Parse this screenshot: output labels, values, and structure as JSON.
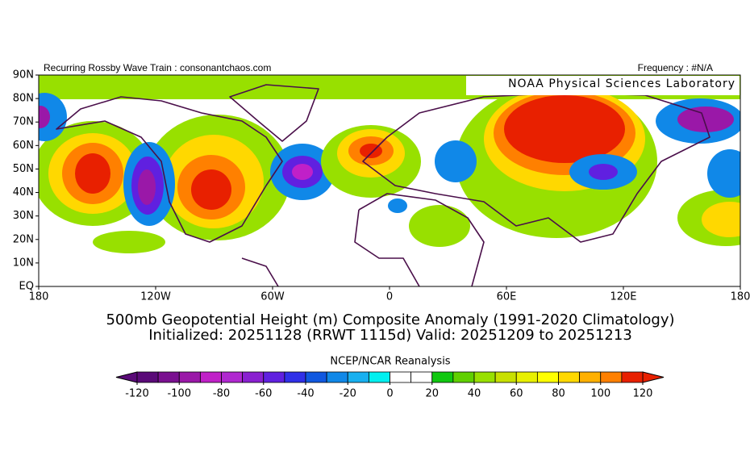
{
  "header": {
    "left": "Recurring Rossby Wave Train : consonantchaos.com",
    "right": "Frequency : #N/A",
    "lab": "NOAA Physical Sciences Laboratory"
  },
  "map": {
    "lat_labels": [
      "90N",
      "80N",
      "70N",
      "60N",
      "50N",
      "40N",
      "30N",
      "20N",
      "10N",
      "EQ"
    ],
    "lon_labels": [
      "180",
      "120W",
      "60W",
      "0",
      "60E",
      "120E",
      "180"
    ]
  },
  "title": {
    "line1": "500mb Geopotential Height (m) Composite Anomaly (1991-2020 Climatology)",
    "line2": "Initialized: 20251128 (RRWT 1115d) Valid: 20251209 to 20251213"
  },
  "colorbar": {
    "title": "NCEP/NCAR Reanalysis",
    "ticks": [
      -120,
      -100,
      -80,
      -60,
      -40,
      -20,
      0,
      20,
      40,
      60,
      80,
      100,
      120
    ],
    "colors": [
      "#5a0a78",
      "#7a1090",
      "#9a18a8",
      "#c020c8",
      "#b028d0",
      "#8a20d0",
      "#6020e0",
      "#3030e8",
      "#1058e0",
      "#1088e8",
      "#18b0f0",
      "#00f0f0",
      "#ffffff",
      "#ffffff",
      "#10c810",
      "#60d000",
      "#98e000",
      "#c8e000",
      "#e8f000",
      "#ffff00",
      "#ffd800",
      "#ffb000",
      "#ff8000",
      "#e82000"
    ]
  }
}
